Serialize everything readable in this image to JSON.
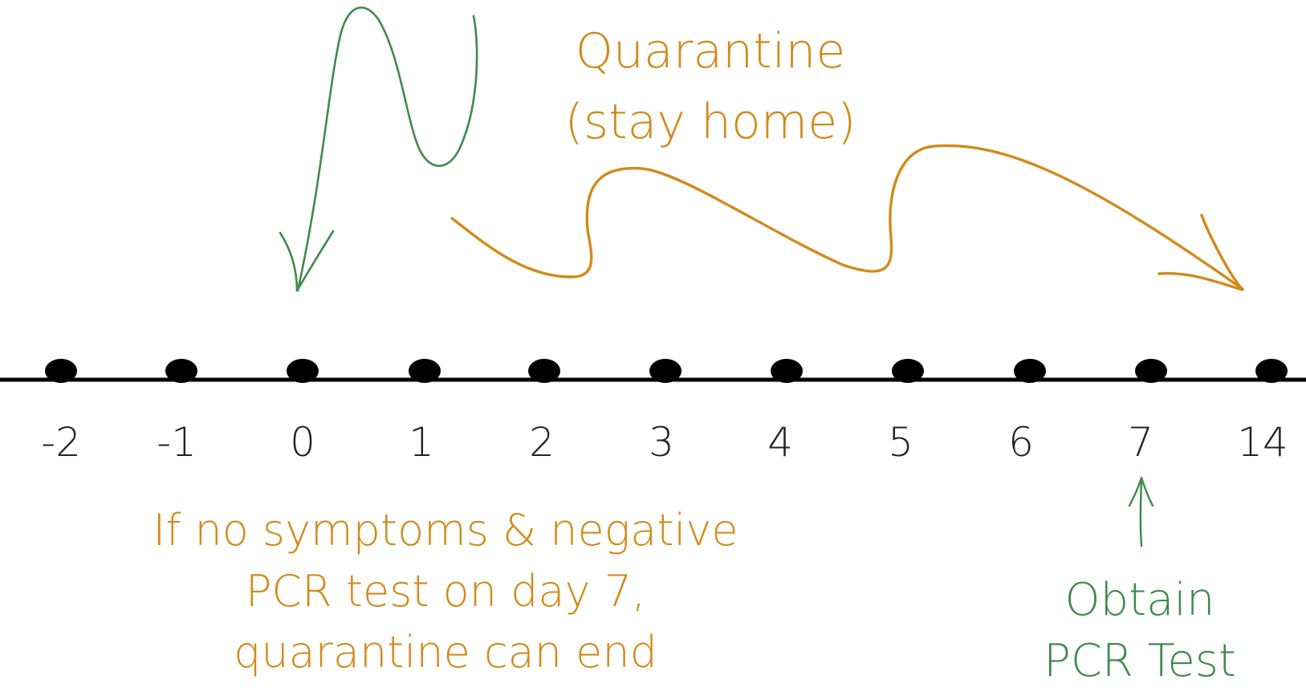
{
  "colors": {
    "quarantine": "#d28a1a",
    "test": "#3f8a4b",
    "timeline": "#000000",
    "tick_text": "#222222"
  },
  "timeline": {
    "days": [
      "-2",
      "-1",
      "0",
      "1",
      "2",
      "3",
      "4",
      "5",
      "6",
      "7",
      "14"
    ]
  },
  "quarantine_label": {
    "line1": "Quarantine",
    "line2": "(stay home)"
  },
  "end_condition": {
    "line1": "If no symptoms & negative",
    "line2": "PCR test on day 7,",
    "line3": "quarantine can end"
  },
  "test_label": {
    "line1": "Obtain",
    "line2": "PCR Test"
  }
}
